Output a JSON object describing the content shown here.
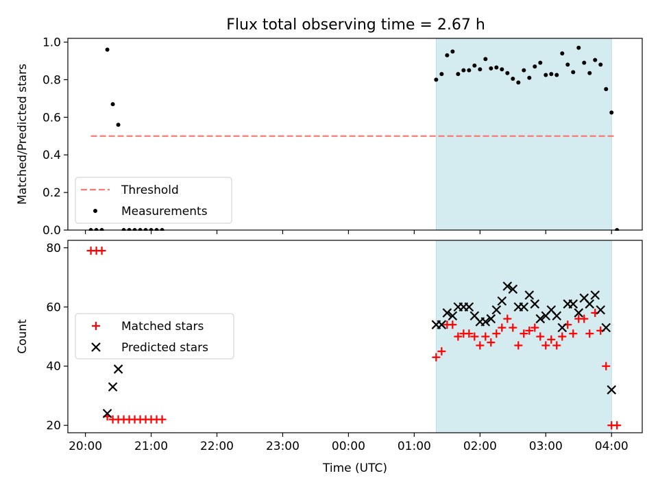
{
  "title": "Flux total observing time = 2.67 h",
  "chart_data": [
    {
      "type": "scatter",
      "panel": "top",
      "ylabel": "Matched/Predicted stars",
      "xlabel": "",
      "xlim": [
        "19:44",
        "04:28"
      ],
      "ylim": [
        0,
        1.02
      ],
      "yticks": [
        "0.0",
        "0.2",
        "0.4",
        "0.6",
        "0.8",
        "1.0"
      ],
      "highlight_span": [
        "01:20",
        "04:00"
      ],
      "highlight_color": "#d4ebf0",
      "legend_position": "lower left",
      "threshold": {
        "name": "Threshold",
        "value": 0.5,
        "x_range": [
          "20:05",
          "04:02"
        ],
        "color": "#f77b72",
        "style": "dashed"
      },
      "measurements": {
        "name": "Measurements",
        "color": "#000000",
        "points": [
          [
            "20:05",
            0.0
          ],
          [
            "20:10",
            0.0
          ],
          [
            "20:15",
            0.0
          ],
          [
            "20:20",
            0.96
          ],
          [
            "20:25",
            0.67
          ],
          [
            "20:30",
            0.56
          ],
          [
            "20:35",
            0.0
          ],
          [
            "20:40",
            0.0
          ],
          [
            "20:45",
            0.0
          ],
          [
            "20:50",
            0.0
          ],
          [
            "20:55",
            0.0
          ],
          [
            "21:00",
            0.0
          ],
          [
            "21:05",
            0.0
          ],
          [
            "21:10",
            0.0
          ],
          [
            "01:20",
            0.8
          ],
          [
            "01:25",
            0.83
          ],
          [
            "01:30",
            0.93
          ],
          [
            "01:35",
            0.95
          ],
          [
            "01:40",
            0.83
          ],
          [
            "01:45",
            0.85
          ],
          [
            "01:50",
            0.85
          ],
          [
            "01:55",
            0.875
          ],
          [
            "02:00",
            0.855
          ],
          [
            "02:05",
            0.91
          ],
          [
            "02:10",
            0.86
          ],
          [
            "02:15",
            0.865
          ],
          [
            "02:20",
            0.855
          ],
          [
            "02:25",
            0.835
          ],
          [
            "02:30",
            0.805
          ],
          [
            "02:35",
            0.785
          ],
          [
            "02:40",
            0.85
          ],
          [
            "02:45",
            0.81
          ],
          [
            "02:50",
            0.87
          ],
          [
            "02:55",
            0.89
          ],
          [
            "03:00",
            0.825
          ],
          [
            "03:05",
            0.83
          ],
          [
            "03:10",
            0.825
          ],
          [
            "03:15",
            0.94
          ],
          [
            "03:20",
            0.88
          ],
          [
            "03:25",
            0.84
          ],
          [
            "03:30",
            0.97
          ],
          [
            "03:35",
            0.89
          ],
          [
            "03:40",
            0.835
          ],
          [
            "03:45",
            0.905
          ],
          [
            "03:50",
            0.88
          ],
          [
            "03:55",
            0.75
          ],
          [
            "04:00",
            0.625
          ],
          [
            "04:05",
            0.0
          ]
        ]
      }
    },
    {
      "type": "scatter",
      "panel": "bottom",
      "ylabel": "Count",
      "xlabel": "Time (UTC)",
      "xlim": [
        "19:44",
        "04:28"
      ],
      "ylim": [
        17.5,
        82.5
      ],
      "yticks": [
        "20",
        "40",
        "60",
        "80"
      ],
      "xticks": [
        "20:00",
        "21:00",
        "22:00",
        "23:00",
        "00:00",
        "01:00",
        "02:00",
        "03:00",
        "04:00"
      ],
      "highlight_span": [
        "01:20",
        "04:00"
      ],
      "highlight_color": "#d4ebf0",
      "legend_position": "center left",
      "series": [
        {
          "name": "Matched stars",
          "marker": "plus",
          "color": "#ff0000",
          "points": [
            [
              "20:05",
              79
            ],
            [
              "20:10",
              79
            ],
            [
              "20:15",
              79
            ],
            [
              "20:20",
              23
            ],
            [
              "20:25",
              22
            ],
            [
              "20:30",
              22
            ],
            [
              "20:35",
              22
            ],
            [
              "20:40",
              22
            ],
            [
              "20:45",
              22
            ],
            [
              "20:50",
              22
            ],
            [
              "20:55",
              22
            ],
            [
              "21:00",
              22
            ],
            [
              "21:05",
              22
            ],
            [
              "21:10",
              22
            ],
            [
              "01:20",
              43
            ],
            [
              "01:25",
              45
            ],
            [
              "01:30",
              54
            ],
            [
              "01:35",
              54
            ],
            [
              "01:40",
              50
            ],
            [
              "01:45",
              51
            ],
            [
              "01:50",
              51
            ],
            [
              "01:55",
              50
            ],
            [
              "02:00",
              47
            ],
            [
              "02:05",
              50
            ],
            [
              "02:10",
              48
            ],
            [
              "02:15",
              51
            ],
            [
              "02:20",
              53
            ],
            [
              "02:25",
              56
            ],
            [
              "02:30",
              53
            ],
            [
              "02:35",
              47
            ],
            [
              "02:40",
              51
            ],
            [
              "02:45",
              52
            ],
            [
              "02:50",
              53
            ],
            [
              "02:55",
              50
            ],
            [
              "03:00",
              47
            ],
            [
              "03:05",
              49
            ],
            [
              "03:10",
              47
            ],
            [
              "03:15",
              50
            ],
            [
              "03:20",
              54
            ],
            [
              "03:25",
              51
            ],
            [
              "03:30",
              56
            ],
            [
              "03:35",
              56
            ],
            [
              "03:40",
              51
            ],
            [
              "03:45",
              58
            ],
            [
              "03:50",
              52
            ],
            [
              "03:55",
              40
            ],
            [
              "04:00",
              20
            ],
            [
              "04:05",
              20
            ]
          ]
        },
        {
          "name": "Predicted stars",
          "marker": "x",
          "color": "#000000",
          "points": [
            [
              "20:20",
              24
            ],
            [
              "20:25",
              33
            ],
            [
              "20:30",
              39
            ],
            [
              "01:20",
              54
            ],
            [
              "01:25",
              54
            ],
            [
              "01:30",
              58
            ],
            [
              "01:35",
              57
            ],
            [
              "01:40",
              60
            ],
            [
              "01:45",
              60
            ],
            [
              "01:50",
              60
            ],
            [
              "01:55",
              57
            ],
            [
              "02:00",
              55
            ],
            [
              "02:05",
              55
            ],
            [
              "02:10",
              56
            ],
            [
              "02:15",
              59
            ],
            [
              "02:20",
              62
            ],
            [
              "02:25",
              67
            ],
            [
              "02:30",
              66
            ],
            [
              "02:35",
              60
            ],
            [
              "02:40",
              60
            ],
            [
              "02:45",
              64
            ],
            [
              "02:50",
              61
            ],
            [
              "02:55",
              56
            ],
            [
              "03:00",
              57
            ],
            [
              "03:05",
              59
            ],
            [
              "03:10",
              57
            ],
            [
              "03:15",
              53
            ],
            [
              "03:20",
              61
            ],
            [
              "03:25",
              61
            ],
            [
              "03:30",
              58
            ],
            [
              "03:35",
              63
            ],
            [
              "03:40",
              61
            ],
            [
              "03:45",
              64
            ],
            [
              "03:50",
              59
            ],
            [
              "03:55",
              53
            ],
            [
              "04:00",
              32
            ]
          ]
        }
      ]
    }
  ]
}
